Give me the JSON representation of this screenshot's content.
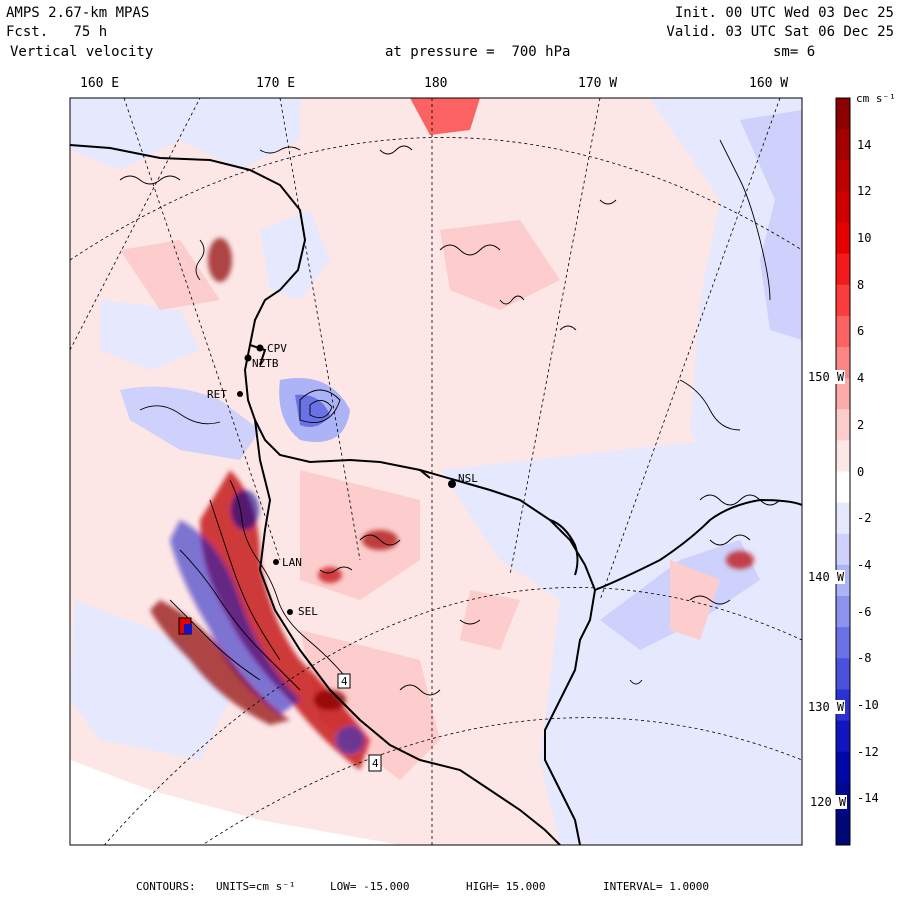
{
  "header": {
    "model": "AMPS 2.67-km MPAS",
    "forecast_label": "Fcst.",
    "forecast_value": "75 h",
    "field": "Vertical velocity",
    "level_label": "at pressure =",
    "level_value": "700 hPa",
    "init": "Init. 00 UTC Wed 03 Dec 25",
    "valid": "Valid. 03 UTC Sat 06 Dec 25",
    "smoothing": "sm= 6"
  },
  "longitude_labels": [
    "160 E",
    "170 E",
    "180",
    "170 W",
    "160 W"
  ],
  "latitude_labels": [
    "150 W",
    "140 W",
    "130 W",
    "120 W"
  ],
  "stations": [
    "CPV",
    "NZTB",
    "RET",
    "NSL",
    "LAN",
    "SEL"
  ],
  "markers": [
    "4",
    "4"
  ],
  "colorbar": {
    "unit": "cm s⁻¹",
    "ticks": [
      "14",
      "12",
      "10",
      "8",
      "6",
      "4",
      "2",
      "0",
      "-2",
      "-4",
      "-6",
      "-8",
      "-10",
      "-12",
      "-14"
    ],
    "colors": [
      "#8b0000",
      "#a40000",
      "#bd0000",
      "#d10000",
      "#e60000",
      "#f21a1a",
      "#fb3c3c",
      "#fb6262",
      "#fc8686",
      "#fdaaaa",
      "#fdcccc",
      "#fde6e6",
      "#ffffff",
      "#e6e8fd",
      "#cdd1fb",
      "#acb3f6",
      "#8b93ef",
      "#6a72e6",
      "#4a52dc",
      "#2a33d1",
      "#1015c0",
      "#0008a8",
      "#000890",
      "#000878"
    ]
  },
  "footer": {
    "contours_label": "CONTOURS:",
    "units": "UNITS=cm s⁻¹",
    "low": "LOW= -15.000",
    "high": "HIGH= 15.000",
    "interval": "INTERVAL= 1.0000"
  }
}
